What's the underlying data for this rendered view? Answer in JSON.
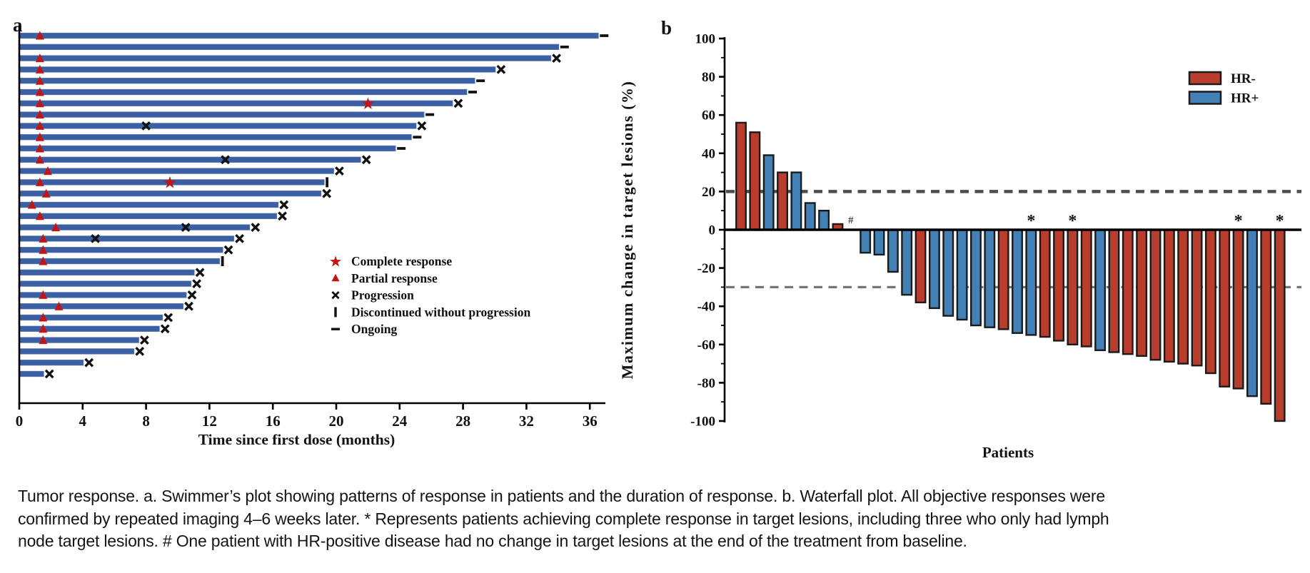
{
  "figure_title": "Tumor response",
  "chart_data": [
    {
      "type": "bar",
      "subtype": "swimmer",
      "panel_label": "a",
      "xlabel": "Time since first dose (months)",
      "x_ticks": [
        0,
        4,
        8,
        12,
        16,
        20,
        24,
        28,
        32,
        36
      ],
      "xlim": [
        0,
        37
      ],
      "bar_color": "#3a5fa3",
      "bar_edge_color": "#5d79b5",
      "marker_color": "#c01616",
      "progression_color": "#111111",
      "legend": [
        {
          "marker": "star",
          "label": "Complete response"
        },
        {
          "marker": "triangle",
          "label": "Partial response"
        },
        {
          "marker": "x",
          "label": "Progression"
        },
        {
          "marker": "vbar",
          "label": "Discontinued without progression"
        },
        {
          "marker": "dash",
          "label": "Ongoing"
        }
      ],
      "patients": [
        {
          "bar": 36.5,
          "pr": 1.3,
          "x": [],
          "end": "ongoing"
        },
        {
          "bar": 34.0,
          "x": [],
          "end": "ongoing"
        },
        {
          "bar": 33.5,
          "pr": 1.3,
          "x": [
            33.9
          ]
        },
        {
          "bar": 30.0,
          "pr": 1.3,
          "x": [
            30.4
          ]
        },
        {
          "bar": 28.7,
          "pr": 1.3,
          "x": [],
          "end": "ongoing"
        },
        {
          "bar": 28.2,
          "pr": 1.3,
          "x": [],
          "end": "ongoing"
        },
        {
          "bar": 27.3,
          "pr": 1.3,
          "cr": 22.0,
          "x": [
            27.7
          ]
        },
        {
          "bar": 25.5,
          "pr": 1.3,
          "x": [],
          "end": "ongoing"
        },
        {
          "bar": 25.0,
          "pr": 1.3,
          "x": [
            8.0,
            25.4
          ]
        },
        {
          "bar": 24.7,
          "pr": 1.3,
          "x": [],
          "end": "ongoing"
        },
        {
          "bar": 23.7,
          "pr": 1.3,
          "x": [],
          "end": "ongoing"
        },
        {
          "bar": 21.5,
          "pr": 1.3,
          "x": [
            13.0,
            21.9
          ]
        },
        {
          "bar": 19.8,
          "pr": 1.8,
          "x": [
            20.2
          ]
        },
        {
          "bar": 19.2,
          "pr": 1.3,
          "cr": 9.5,
          "x": [],
          "end": "discontinued"
        },
        {
          "bar": 19.0,
          "pr": 1.7,
          "x": [
            19.4
          ]
        },
        {
          "bar": 16.3,
          "pr": 0.8,
          "x": [
            16.7
          ]
        },
        {
          "bar": 16.2,
          "pr": 1.3,
          "x": [
            16.6
          ]
        },
        {
          "bar": 14.5,
          "pr": 2.3,
          "x": [
            10.5,
            14.9
          ]
        },
        {
          "bar": 13.5,
          "pr": 1.5,
          "x": [
            4.8,
            13.9
          ]
        },
        {
          "bar": 12.8,
          "pr": 1.5,
          "x": [
            13.2
          ]
        },
        {
          "bar": 12.6,
          "pr": 1.5,
          "x": [],
          "end": "discontinued"
        },
        {
          "bar": 11.0,
          "x": [
            11.4
          ]
        },
        {
          "bar": 10.8,
          "x": [
            11.2
          ]
        },
        {
          "bar": 10.5,
          "pr": 1.5,
          "x": [
            10.9
          ]
        },
        {
          "bar": 10.3,
          "pr": 2.5,
          "x": [
            10.7
          ]
        },
        {
          "bar": 9.0,
          "pr": 1.5,
          "x": [
            9.4
          ]
        },
        {
          "bar": 8.8,
          "pr": 1.5,
          "x": [
            9.2
          ]
        },
        {
          "bar": 7.5,
          "pr": 1.5,
          "x": [
            7.9
          ]
        },
        {
          "bar": 7.2,
          "x": [
            7.6
          ]
        },
        {
          "bar": 4.0,
          "x": [
            4.4
          ]
        },
        {
          "bar": 1.5,
          "x": [
            1.9
          ]
        }
      ]
    },
    {
      "type": "bar",
      "subtype": "waterfall",
      "panel_label": "b",
      "ylabel": "Maximum change in target lesions (%)",
      "xlabel": "Patients",
      "ylim": [
        -100,
        100
      ],
      "y_ticks": [
        100,
        80,
        60,
        40,
        20,
        0,
        -20,
        -40,
        -60,
        -80,
        -100
      ],
      "reference_lines": [
        20,
        -30
      ],
      "groups": {
        "HR-": "#b93d2d",
        "HR+": "#4280b5"
      },
      "legend": [
        {
          "label": "HR-",
          "color": "#b93d2d"
        },
        {
          "label": "HR+",
          "color": "#4280b5"
        }
      ],
      "bars": [
        {
          "value": 56,
          "group": "HR-"
        },
        {
          "value": 51,
          "group": "HR-"
        },
        {
          "value": 39,
          "group": "HR+"
        },
        {
          "value": 30,
          "group": "HR-"
        },
        {
          "value": 30,
          "group": "HR+"
        },
        {
          "value": 14,
          "group": "HR+"
        },
        {
          "value": 10,
          "group": "HR+"
        },
        {
          "value": 3,
          "group": "HR-"
        },
        {
          "value": 0,
          "group": "HR+",
          "annotation": "#"
        },
        {
          "value": -12,
          "group": "HR+"
        },
        {
          "value": -13,
          "group": "HR+"
        },
        {
          "value": -22,
          "group": "HR+"
        },
        {
          "value": -34,
          "group": "HR+"
        },
        {
          "value": -38,
          "group": "HR-"
        },
        {
          "value": -41,
          "group": "HR+"
        },
        {
          "value": -45,
          "group": "HR+"
        },
        {
          "value": -47,
          "group": "HR+"
        },
        {
          "value": -50,
          "group": "HR+"
        },
        {
          "value": -51,
          "group": "HR+"
        },
        {
          "value": -52,
          "group": "HR-"
        },
        {
          "value": -54,
          "group": "HR+"
        },
        {
          "value": -55,
          "group": "HR+",
          "annotation": "*"
        },
        {
          "value": -56,
          "group": "HR-"
        },
        {
          "value": -58,
          "group": "HR-"
        },
        {
          "value": -60,
          "group": "HR-",
          "annotation": "*"
        },
        {
          "value": -61,
          "group": "HR-"
        },
        {
          "value": -63,
          "group": "HR+"
        },
        {
          "value": -64,
          "group": "HR-"
        },
        {
          "value": -65,
          "group": "HR-"
        },
        {
          "value": -66,
          "group": "HR-"
        },
        {
          "value": -68,
          "group": "HR-"
        },
        {
          "value": -69,
          "group": "HR-"
        },
        {
          "value": -70,
          "group": "HR-"
        },
        {
          "value": -71,
          "group": "HR-"
        },
        {
          "value": -75,
          "group": "HR-"
        },
        {
          "value": -82,
          "group": "HR-"
        },
        {
          "value": -83,
          "group": "HR-",
          "annotation": "*"
        },
        {
          "value": -87,
          "group": "HR+"
        },
        {
          "value": -91,
          "group": "HR-"
        },
        {
          "value": -100,
          "group": "HR-",
          "annotation": "*"
        }
      ]
    }
  ],
  "caption": {
    "lines": [
      "Tumor response. a. Swimmer’s plot showing patterns of response in patients and the duration of response. b. Waterfall plot. All objective responses were",
      "confirmed by repeated imaging 4–6 weeks later. * Represents patients achieving complete response in target lesions, including three who only had lymph",
      "node target lesions. # One patient with HR-positive disease had no change in target lesions at the end of the treatment from baseline."
    ]
  }
}
